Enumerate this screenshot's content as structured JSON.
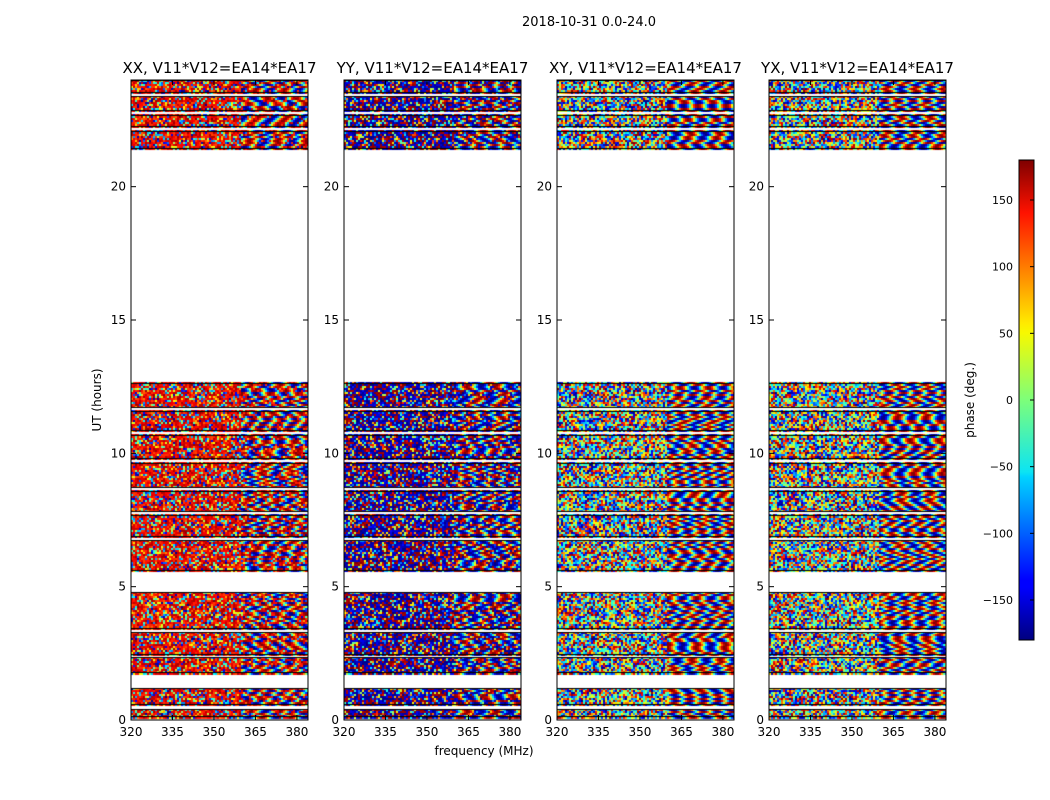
{
  "figure": {
    "suptitle": "2018-10-31 0.0-24.0"
  },
  "chart_data": {
    "type": "heatmap",
    "xlabel": "frequency (MHz)",
    "ylabel": "UT (hours)",
    "x_ticks": [
      320,
      335,
      350,
      365,
      380
    ],
    "x_range": [
      320,
      384
    ],
    "y_ticks": [
      0,
      5,
      10,
      15,
      20
    ],
    "y_range": [
      0,
      24
    ],
    "colorbar": {
      "label": "phase (deg.)",
      "range": [
        -180,
        180
      ],
      "ticks": [
        150,
        100,
        50,
        0,
        -50,
        -100,
        -150
      ],
      "tick_labels": [
        "150",
        "100",
        "50",
        "0",
        "−50",
        "−100",
        "−150"
      ],
      "colormap": "jet"
    },
    "panels": [
      {
        "title": "XX, V11*V12=EA14*EA17",
        "polarization": "XX",
        "bias": 140,
        "bias_prob": 0.55
      },
      {
        "title": "YY, V11*V12=EA14*EA17",
        "polarization": "YY",
        "bias": -170,
        "bias_prob": 0.6
      },
      {
        "title": "XY, V11*V12=EA14*EA17",
        "polarization": "XY",
        "bias": 0,
        "bias_prob": 0.0
      },
      {
        "title": "YX, V11*V12=EA14*EA17",
        "polarization": "YX",
        "bias": 0,
        "bias_prob": 0.0
      }
    ],
    "data_segments_hours": [
      [
        0.1,
        0.4
      ],
      [
        0.55,
        1.2
      ],
      [
        1.75,
        2.35
      ],
      [
        2.45,
        3.3
      ],
      [
        3.4,
        4.8
      ],
      [
        5.6,
        6.75
      ],
      [
        6.85,
        7.7
      ],
      [
        7.8,
        8.6
      ],
      [
        8.7,
        9.65
      ],
      [
        9.8,
        10.7
      ],
      [
        10.85,
        11.6
      ],
      [
        11.7,
        12.65
      ],
      [
        21.4,
        22.1
      ],
      [
        22.25,
        22.7
      ],
      [
        22.85,
        23.4
      ],
      [
        23.5,
        24.0
      ]
    ]
  }
}
